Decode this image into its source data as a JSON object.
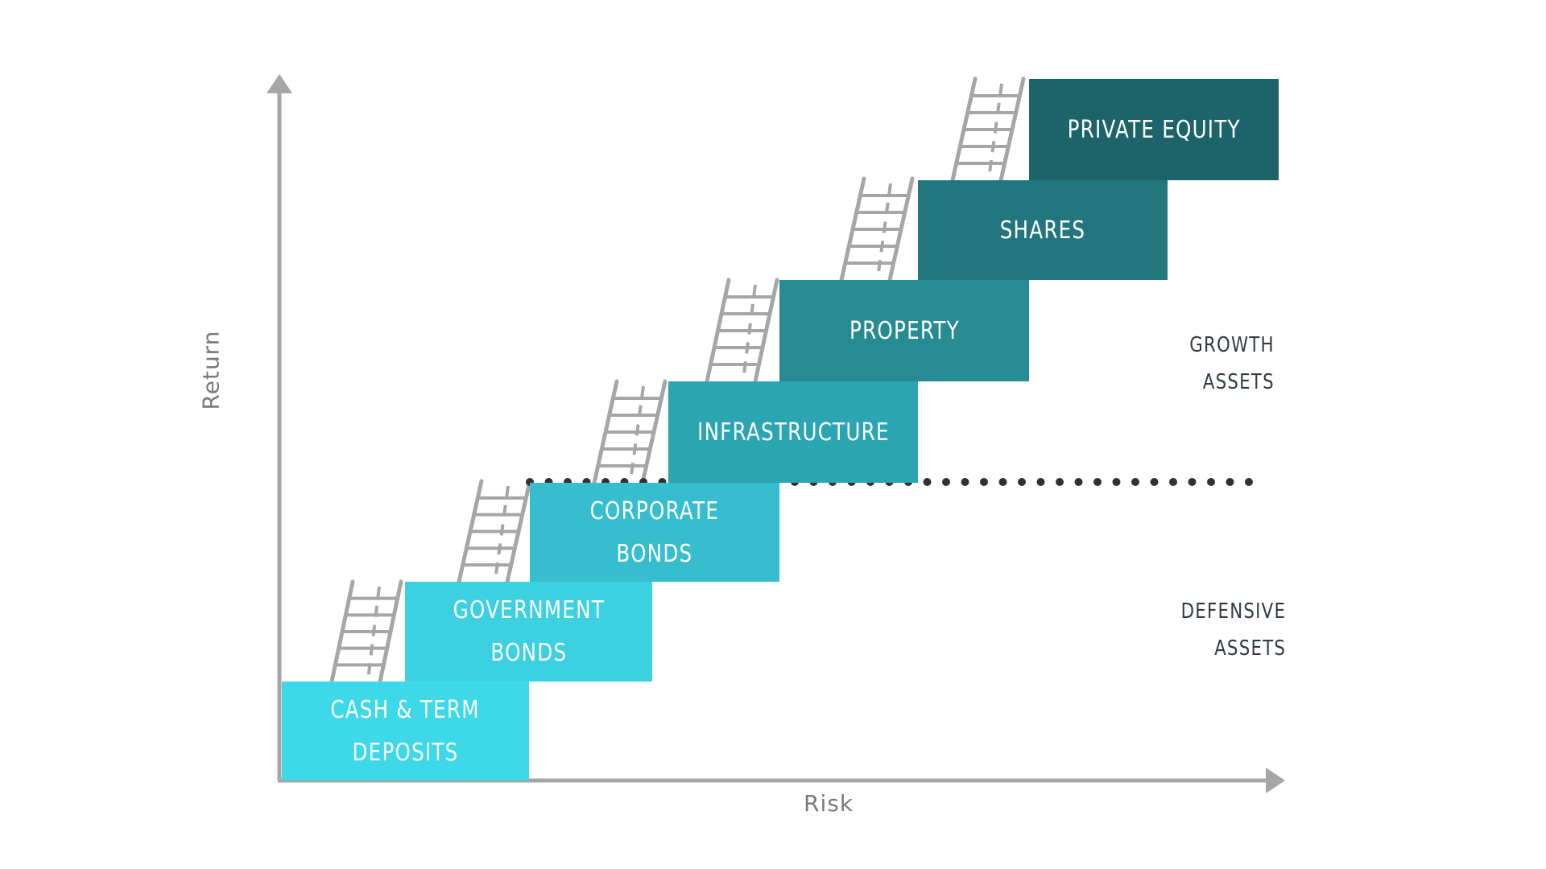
{
  "diagram": {
    "y_axis_label": "Return",
    "x_axis_label": "Risk",
    "steps": [
      {
        "lines": [
          "CASH & TERM",
          "DEPOSITS"
        ],
        "color": "#3dd9e8"
      },
      {
        "lines": [
          "GOVERNMENT",
          "BONDS"
        ],
        "color": "#3bd1e0"
      },
      {
        "lines": [
          "CORPORATE",
          "BONDS"
        ],
        "color": "#36bece"
      },
      {
        "lines": [
          "INFRASTRUCTURE"
        ],
        "color": "#2ba5b2"
      },
      {
        "lines": [
          "PROPERTY"
        ],
        "color": "#278b92"
      },
      {
        "lines": [
          "SHARES"
        ],
        "color": "#22767d"
      },
      {
        "lines": [
          "PRIVATE EQUITY"
        ],
        "color": "#1c646a"
      }
    ],
    "zones": {
      "growth": [
        "GROWTH",
        "ASSETS"
      ],
      "defensive": [
        "DEFENSIVE",
        "ASSETS"
      ]
    },
    "colors": {
      "axis": "#a6a6a6",
      "ladder": "#a6a6a6",
      "divider": "#2e3238",
      "zone_text": "#333a40",
      "axis_text": "#7a7a7a"
    }
  }
}
